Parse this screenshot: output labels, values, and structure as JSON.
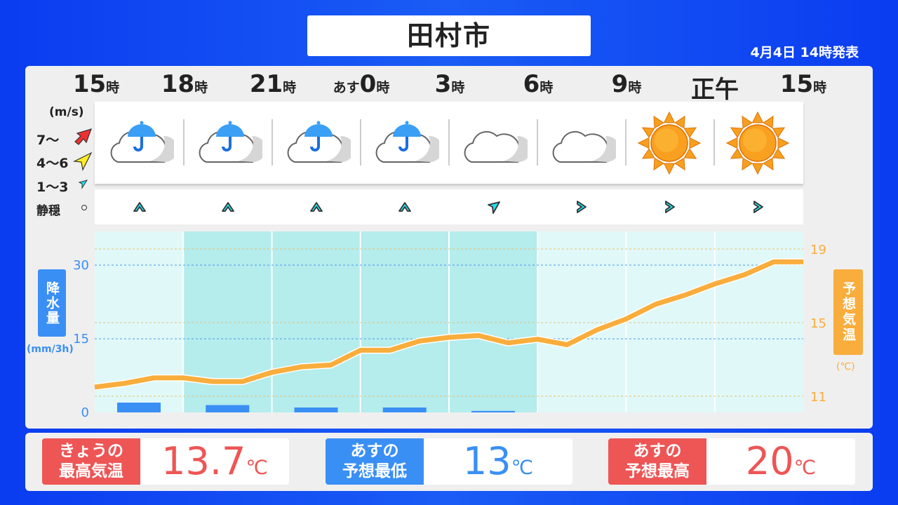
{
  "title": "田村市",
  "issued": "4月4日 14時発表",
  "times": [
    {
      "pre": "",
      "num": "15",
      "suf": "時"
    },
    {
      "pre": "",
      "num": "18",
      "suf": "時"
    },
    {
      "pre": "",
      "num": "21",
      "suf": "時"
    },
    {
      "pre": "あす",
      "num": "0",
      "suf": "時"
    },
    {
      "pre": "",
      "num": "3",
      "suf": "時"
    },
    {
      "pre": "",
      "num": "6",
      "suf": "時"
    },
    {
      "pre": "",
      "num": "9",
      "suf": "時"
    },
    {
      "pre": "",
      "num": "正午",
      "suf": ""
    },
    {
      "pre": "",
      "num": "15",
      "suf": "時"
    }
  ],
  "weather_icons": [
    "cloud-rain-icon",
    "cloud-rain-icon",
    "cloud-rain-icon",
    "cloud-rain-icon",
    "cloud-icon",
    "cloud-icon",
    "sun-icon",
    "sun-icon"
  ],
  "wind_legend": {
    "unit": "(m/s)",
    "strong": "7〜",
    "moderate": "4〜6",
    "light": "1〜3",
    "calm": "静穏"
  },
  "wind": [
    {
      "speed": "1〜3",
      "dir": "S"
    },
    {
      "speed": "1〜3",
      "dir": "S"
    },
    {
      "speed": "1〜3",
      "dir": "S"
    },
    {
      "speed": "1〜3",
      "dir": "S"
    },
    {
      "speed": "1〜3",
      "dir": "SW"
    },
    {
      "speed": "1〜3",
      "dir": "W"
    },
    {
      "speed": "1〜3",
      "dir": "W"
    },
    {
      "speed": "1〜3",
      "dir": "W"
    }
  ],
  "colors": {
    "precip": "#3a8ff5",
    "temp": "#f9ad3c",
    "red": "#ee5555",
    "blue": "#3a8ff5",
    "wind_light": "#22e0ee"
  },
  "chart_data": {
    "type": "bar+line",
    "precip": {
      "label": "降水量",
      "unit": "(mm/3h)",
      "ticks": [
        0,
        15,
        30
      ],
      "ylim": [
        0,
        37
      ],
      "values": [
        2,
        1.5,
        1,
        1,
        0.3,
        0,
        0,
        0
      ]
    },
    "temp": {
      "label": "予想気温",
      "unit": "(℃)",
      "ticks": [
        11,
        15,
        19
      ],
      "ylim": [
        10,
        19.8
      ],
      "values": [
        11.5,
        11.7,
        12.0,
        12.0,
        11.8,
        11.8,
        12.3,
        12.6,
        12.7,
        13.5,
        13.5,
        14.0,
        14.2,
        14.3,
        13.9,
        14.1,
        13.8,
        14.6,
        15.2,
        16.0,
        16.5,
        17.1,
        17.6,
        18.3,
        18.3
      ]
    }
  },
  "summary": [
    {
      "label1": "きょうの",
      "label2": "最高気温",
      "value": "13.7",
      "unit": "℃",
      "color": "#ee5555"
    },
    {
      "label1": "あすの",
      "label2": "予想最低",
      "value": "13",
      "unit": "℃",
      "color": "#3a8ff5"
    },
    {
      "label1": "あすの",
      "label2": "予想最高",
      "value": "20",
      "unit": "℃",
      "color": "#ee5555"
    }
  ]
}
